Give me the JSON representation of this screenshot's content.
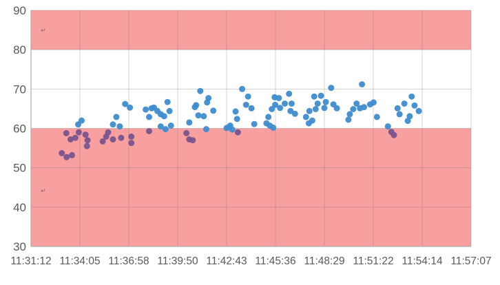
{
  "chart_data": {
    "type": "scatter",
    "title": "",
    "xlabel": "",
    "ylabel": "",
    "x_axis": {
      "tick_labels": [
        "11:31:12",
        "11:34:05",
        "11:36:58",
        "11:39:50",
        "11:42:43",
        "11:45:36",
        "11:48:29",
        "11:51:22",
        "11:54:14",
        "11:57:07"
      ],
      "start_time": "11:31:12",
      "end_time": "11:57:07",
      "tick_interval_seconds": 173,
      "range_seconds": [
        0,
        1557
      ]
    },
    "y_axis": {
      "min": 30,
      "max": 90,
      "tick_step": 10,
      "tick_labels": [
        "30",
        "40",
        "50",
        "60",
        "70",
        "80",
        "90"
      ]
    },
    "grid": true,
    "legend": "none",
    "bands": [
      {
        "name": "upper-limit-band",
        "from": 80,
        "to": 90
      },
      {
        "name": "lower-limit-band",
        "from": 30,
        "to": 60
      }
    ],
    "colors": {
      "band_fill": "#F8A0A0",
      "point_blue": "#3E8CD0",
      "point_purple": "#7A548C",
      "gridline": "rgba(110,110,110,0.30)",
      "axis_line": "#ADADAD",
      "axis_text": "#595959",
      "background": "#FFFFFF"
    },
    "series": [
      {
        "name": "readings-below-60",
        "color_key": "point_purple",
        "points": [
          [
            125,
            58.8
          ],
          [
            140,
            57.2
          ],
          [
            157,
            57.6
          ],
          [
            169,
            59.0
          ],
          [
            193,
            58.4
          ],
          [
            200,
            57.0
          ],
          [
            198,
            55.5
          ],
          [
            109,
            53.7
          ],
          [
            126,
            52.7
          ],
          [
            145,
            53.2
          ],
          [
            273,
            59.0
          ],
          [
            266,
            57.9
          ],
          [
            254,
            56.7
          ],
          [
            290,
            57.2
          ],
          [
            319,
            57.6
          ],
          [
            355,
            57.9
          ],
          [
            355,
            56.3
          ],
          [
            418,
            59.3
          ],
          [
            550,
            58.8
          ],
          [
            560,
            57.2
          ],
          [
            572,
            57.0
          ],
          [
            732,
            59.0
          ],
          [
            1275,
            59.1
          ],
          [
            1284,
            58.3
          ]
        ]
      },
      {
        "name": "readings-above-60",
        "color_key": "point_blue",
        "points": [
          [
            167,
            61.0
          ],
          [
            179,
            62.0
          ],
          [
            333,
            66.2
          ],
          [
            350,
            65.3
          ],
          [
            302,
            62.9
          ],
          [
            290,
            61.0
          ],
          [
            314,
            60.5
          ],
          [
            406,
            64.8
          ],
          [
            427,
            65.1
          ],
          [
            447,
            64.4
          ],
          [
            471,
            63.1
          ],
          [
            483,
            66.7
          ],
          [
            490,
            64.4
          ],
          [
            418,
            62.9
          ],
          [
            435,
            65.3
          ],
          [
            459,
            63.6
          ],
          [
            495,
            60.7
          ],
          [
            459,
            60.5
          ],
          [
            476,
            59.8
          ],
          [
            599,
            69.5
          ],
          [
            628,
            67.7
          ],
          [
            623,
            66.6
          ],
          [
            584,
            65.9
          ],
          [
            580,
            65.4
          ],
          [
            645,
            64.5
          ],
          [
            592,
            63.3
          ],
          [
            611,
            63.1
          ],
          [
            560,
            61.5
          ],
          [
            620,
            59.8
          ],
          [
            747,
            70.0
          ],
          [
            768,
            68.1
          ],
          [
            761,
            66.0
          ],
          [
            780,
            65.1
          ],
          [
            724,
            64.3
          ],
          [
            729,
            62.4
          ],
          [
            705,
            60.7
          ],
          [
            692,
            60.1
          ],
          [
            700,
            60.3
          ],
          [
            712,
            59.7
          ],
          [
            790,
            61.1
          ],
          [
            862,
            67.9
          ],
          [
            877,
            67.7
          ],
          [
            913,
            68.8
          ],
          [
            898,
            66.3
          ],
          [
            922,
            66.3
          ],
          [
            864,
            66.0
          ],
          [
            881,
            65.2
          ],
          [
            918,
            64.4
          ],
          [
            934,
            63.7
          ],
          [
            852,
            64.9
          ],
          [
            840,
            62.9
          ],
          [
            833,
            61.3
          ],
          [
            845,
            60.7
          ],
          [
            857,
            60.2
          ],
          [
            1062,
            70.3
          ],
          [
            1002,
            68.1
          ],
          [
            1026,
            68.3
          ],
          [
            1014,
            66.3
          ],
          [
            1043,
            66.7
          ],
          [
            1070,
            66.1
          ],
          [
            1038,
            65.2
          ],
          [
            1082,
            65.1
          ],
          [
            985,
            64.4
          ],
          [
            1007,
            64.9
          ],
          [
            973,
            62.9
          ],
          [
            995,
            62.0
          ],
          [
            983,
            61.3
          ],
          [
            1171,
            71.2
          ],
          [
            1152,
            66.3
          ],
          [
            1140,
            64.9
          ],
          [
            1164,
            65.1
          ],
          [
            1178,
            65.4
          ],
          [
            1200,
            66.1
          ],
          [
            1212,
            66.6
          ],
          [
            1224,
            62.9
          ],
          [
            1128,
            63.6
          ],
          [
            1123,
            62.2
          ],
          [
            1347,
            68.1
          ],
          [
            1321,
            66.3
          ],
          [
            1357,
            65.8
          ],
          [
            1297,
            65.1
          ],
          [
            1304,
            63.6
          ],
          [
            1333,
            61.9
          ],
          [
            1340,
            63.1
          ],
          [
            1372,
            64.4
          ],
          [
            1263,
            60.5
          ]
        ]
      }
    ],
    "annotations": [
      {
        "glyph": "↵",
        "t": 44,
        "v": 84.9
      },
      {
        "glyph": "↵",
        "t": 44,
        "v": 44.2
      }
    ]
  }
}
